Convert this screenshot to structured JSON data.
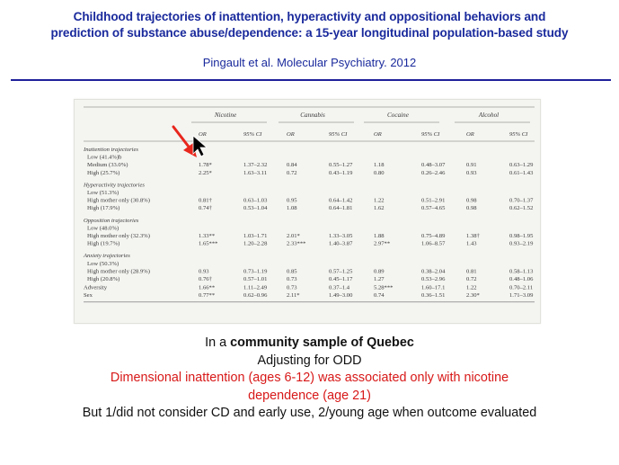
{
  "header": {
    "title_line1": "Childhood trajectories of inattention, hyperactivity and oppositional behaviors and",
    "title_line2": "prediction of substance abuse/dependence: a 15-year longitudinal population-based study",
    "citation": "Pingault et al. Molecular Psychiatry. 2012"
  },
  "table": {
    "substances": [
      "Nicotine",
      "Cannabis",
      "Cocaine",
      "Alcohol"
    ],
    "subheaders": [
      "OR",
      "95% CI"
    ],
    "rows": [
      {
        "label": "Inattention trajectories",
        "type": "section"
      },
      {
        "label": "Low (41.4%)b",
        "type": "ref"
      },
      {
        "label": "Medium (33.0%)",
        "values": [
          "1.78*",
          "1.37–2.32",
          "0.84",
          "0.55–1.27",
          "1.18",
          "0.48–3.07",
          "0.91",
          "0.63–1.29"
        ]
      },
      {
        "label": "High (25.7%)",
        "values": [
          "2.25*",
          "1.63–3.11",
          "0.72",
          "0.43–1.19",
          "0.80",
          "0.26–2.46",
          "0.93",
          "0.61–1.43"
        ]
      },
      {
        "label": "Hyperactivity trajectories",
        "type": "section"
      },
      {
        "label": "Low (51.3%)",
        "type": "ref"
      },
      {
        "label": "High mother only (30.8%)",
        "values": [
          "0.81†",
          "0.63–1.03",
          "0.95",
          "0.64–1.42",
          "1.22",
          "0.51–2.91",
          "0.98",
          "0.70–1.37"
        ]
      },
      {
        "label": "High (17.9%)",
        "values": [
          "0.74†",
          "0.53–1.04",
          "1.08",
          "0.64–1.81",
          "1.62",
          "0.57–4.65",
          "0.98",
          "0.62–1.52"
        ]
      },
      {
        "label": "Opposition trajectories",
        "type": "section"
      },
      {
        "label": "Low (48.0%)",
        "type": "ref"
      },
      {
        "label": "High mother only (32.3%)",
        "values": [
          "1.33**",
          "1.03–1.71",
          "2.01*",
          "1.33–3.05",
          "1.88",
          "0.75–4.89",
          "1.38†",
          "0.98–1.95"
        ]
      },
      {
        "label": "High (19.7%)",
        "values": [
          "1.65***",
          "1.20–2.28",
          "2.33***",
          "1.40–3.87",
          "2.97**",
          "1.06–8.57",
          "1.43",
          "0.93–2.19"
        ]
      },
      {
        "label": "Anxiety trajectories",
        "type": "section"
      },
      {
        "label": "Low (50.3%)",
        "type": "ref"
      },
      {
        "label": "High mother only (28.9%)",
        "values": [
          "0.93",
          "0.73–1.19",
          "0.85",
          "0.57–1.25",
          "0.89",
          "0.38–2.04",
          "0.81",
          "0.58–1.13"
        ]
      },
      {
        "label": "High (20.8%)",
        "values": [
          "0.76†",
          "0.57–1.01",
          "0.73",
          "0.45–1.17",
          "1.27",
          "0.53–2.96",
          "0.72",
          "0.48–1.06"
        ]
      },
      {
        "label": "Adversity",
        "values": [
          "1.66**",
          "1.11–2.49",
          "0.73",
          "0.37–1.4",
          "5.28***",
          "1.60–17.1",
          "1.22",
          "0.70–2.11"
        ]
      },
      {
        "label": "Sex",
        "values": [
          "0.77**",
          "0.62–0.96",
          "2.11*",
          "1.49–3.00",
          "0.74",
          "0.36–1.51",
          "2.30*",
          "1.71–3.09"
        ]
      }
    ]
  },
  "summary": {
    "line1_prefix": "In a ",
    "line1_bold": "community sample of Quebec",
    "line2": "Adjusting for ODD",
    "line3": "Dimensional inattention (ages 6-12) was associated only with nicotine",
    "line4": "dependence (age 21)",
    "line5": "But 1/did not consider CD and early use, 2/young age when outcome evaluated"
  },
  "colors": {
    "title": "#1a2a9c",
    "rule": "#20209a",
    "highlight_text": "#d81818",
    "arrow": "#e8261c"
  },
  "icons": {
    "annotation_arrow": "red-arrow-icon",
    "pointer": "mouse-pointer-icon"
  }
}
